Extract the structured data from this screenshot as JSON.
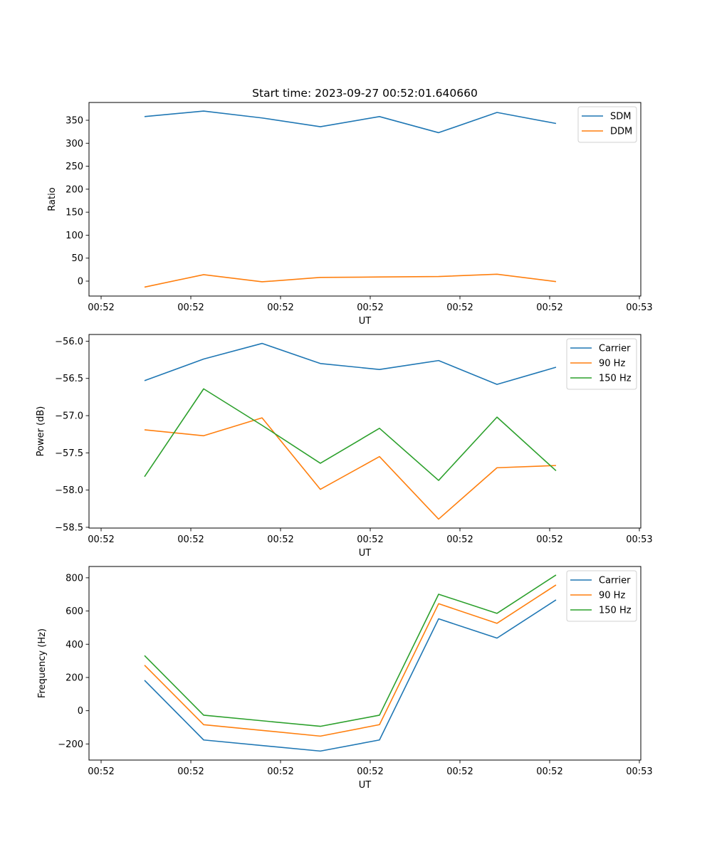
{
  "figure_title": "Start time: 2023-09-27 00:52:01.640660",
  "chart_data": [
    {
      "type": "line",
      "title": "Start time: 2023-09-27 00:52:01.640660",
      "xlabel": "UT",
      "ylabel": "Ratio",
      "x_tick_labels": [
        "00:52",
        "00:52",
        "00:52",
        "00:52",
        "00:52",
        "00:52",
        "00:53"
      ],
      "x_tick_positions": [
        0,
        1,
        2,
        3,
        4,
        5,
        6
      ],
      "xlim": [
        -0.135,
        6.016
      ],
      "x": [
        0.484,
        1.143,
        1.794,
        2.444,
        3.103,
        3.762,
        4.413,
        5.071
      ],
      "ylim": [
        -32.5,
        388.7
      ],
      "y_ticks": [
        0,
        50,
        100,
        150,
        200,
        250,
        300,
        350
      ],
      "y_tick_labels": [
        "0",
        "50",
        "100",
        "150",
        "200",
        "250",
        "300",
        "350"
      ],
      "grid": false,
      "legend_position": "top-right",
      "series": [
        {
          "name": "SDM",
          "color": "#1f77b4",
          "values": [
            358,
            370,
            355,
            336,
            358,
            323,
            367,
            343
          ]
        },
        {
          "name": "DDM",
          "color": "#ff7f0e",
          "values": [
            -13,
            14,
            -1.5,
            8,
            9,
            10,
            15,
            -1
          ]
        }
      ]
    },
    {
      "type": "line",
      "title": "",
      "xlabel": "UT",
      "ylabel": "Power (dB)",
      "x_tick_labels": [
        "00:52",
        "00:52",
        "00:52",
        "00:52",
        "00:52",
        "00:52",
        "00:53"
      ],
      "x_tick_positions": [
        0,
        1,
        2,
        3,
        4,
        5,
        6
      ],
      "xlim": [
        -0.135,
        6.016
      ],
      "x": [
        0.484,
        1.143,
        1.794,
        2.444,
        3.103,
        3.762,
        4.413,
        5.071
      ],
      "ylim": [
        -58.51,
        -55.91
      ],
      "y_ticks": [
        -58.5,
        -58.0,
        -57.5,
        -57.0,
        -56.5,
        -56.0
      ],
      "y_tick_labels": [
        "−58.5",
        "−58.0",
        "−57.5",
        "−57.0",
        "−56.5",
        "−56.0"
      ],
      "grid": false,
      "legend_position": "top-right",
      "series": [
        {
          "name": "Carrier",
          "color": "#1f77b4",
          "values": [
            -56.53,
            -56.24,
            -56.03,
            -56.3,
            -56.38,
            -56.26,
            -56.58,
            -56.35
          ]
        },
        {
          "name": "90 Hz",
          "color": "#ff7f0e",
          "values": [
            -57.19,
            -57.27,
            -57.03,
            -57.99,
            -57.55,
            -58.39,
            -57.7,
            -57.67
          ]
        },
        {
          "name": "150 Hz",
          "color": "#2ca02c",
          "values": [
            -57.82,
            -56.64,
            -57.13,
            -57.64,
            -57.17,
            -57.87,
            -57.02,
            -57.74
          ]
        }
      ]
    },
    {
      "type": "line",
      "title": "",
      "xlabel": "UT",
      "ylabel": "Frequency (Hz)",
      "x_tick_labels": [
        "00:52",
        "00:52",
        "00:52",
        "00:52",
        "00:52",
        "00:52",
        "00:53"
      ],
      "x_tick_positions": [
        0,
        1,
        2,
        3,
        4,
        5,
        6
      ],
      "xlim": [
        -0.135,
        6.016
      ],
      "x": [
        0.484,
        1.143,
        2.444,
        3.103,
        3.762,
        4.413,
        5.071
      ],
      "ylim": [
        -297,
        868
      ],
      "y_ticks": [
        -200,
        0,
        200,
        400,
        600,
        800
      ],
      "y_tick_labels": [
        "−200",
        "0",
        "200",
        "400",
        "600",
        "800"
      ],
      "grid": false,
      "legend_position": "top-right",
      "series": [
        {
          "name": "Carrier",
          "color": "#1f77b4",
          "values": [
            183,
            -176,
            -243,
            -176,
            553,
            437,
            667
          ]
        },
        {
          "name": "90 Hz",
          "color": "#ff7f0e",
          "values": [
            274,
            -84,
            -153,
            -84,
            644,
            526,
            757
          ]
        },
        {
          "name": "150 Hz",
          "color": "#2ca02c",
          "values": [
            332,
            -27,
            -94,
            -27,
            701,
            586,
            817
          ]
        }
      ]
    }
  ]
}
